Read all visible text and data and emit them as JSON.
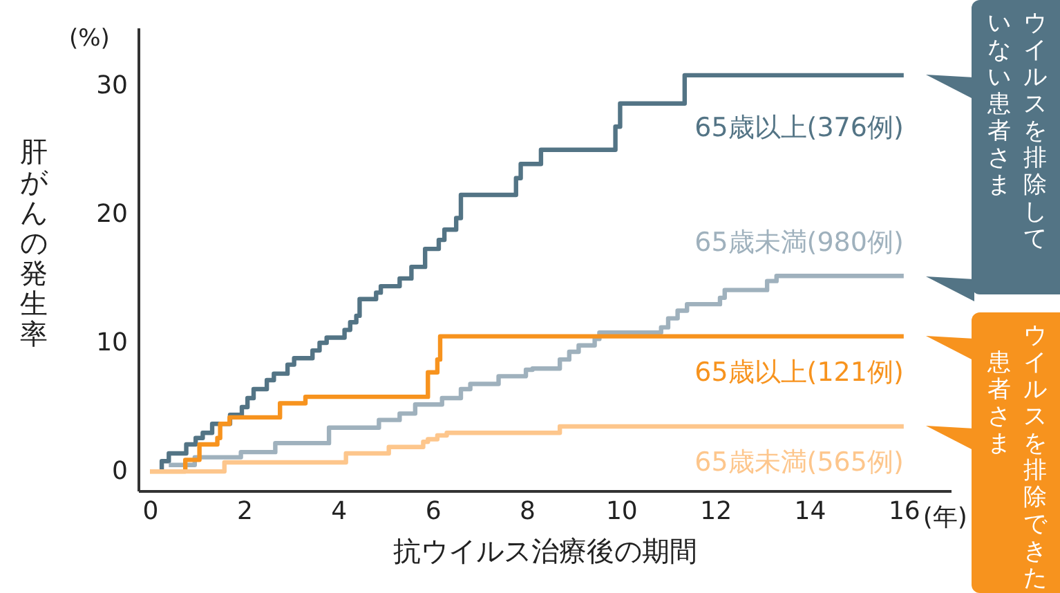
{
  "chart_data": {
    "type": "step",
    "xlabel": "抗ウイルス治療後の期間",
    "ylabel": "肝がんの発生率",
    "annotations": [
      "(%)",
      "(年)",
      "ウイルスを排除して",
      "いない患者さま",
      "ウイルスを排除できた",
      "患者さま"
    ],
    "xlim": [
      -0.25,
      17
    ],
    "xticks": [
      0,
      2,
      4,
      6,
      8,
      10,
      12,
      14,
      16
    ],
    "ylim": [
      -1.5,
      34.5
    ],
    "yticks": [
      0,
      10,
      20,
      30
    ],
    "marker": "none",
    "line_style": "solid",
    "series": [
      {
        "name": "65歳以上(376例)",
        "color": "#537485",
        "x": [
          0.25,
          0.25,
          0.4,
          0.77,
          0.97,
          1.12,
          1.32,
          1.7,
          1.95,
          2.07,
          2.2,
          2.48,
          2.63,
          2.92,
          3.06,
          3.45,
          3.6,
          3.75,
          4.13,
          4.25,
          4.38,
          4.45,
          4.8,
          4.9,
          5.3,
          5.55,
          5.84,
          6.13,
          6.25,
          6.5,
          6.6,
          7.77,
          7.87,
          8.3,
          9.88,
          9.98,
          11.35,
          16
        ],
        "values": [
          0,
          0.8,
          1.4,
          2.1,
          2.6,
          3,
          3.7,
          4.4,
          5,
          5.7,
          6.4,
          7.1,
          7.6,
          8.3,
          8.8,
          9.4,
          10,
          10.4,
          11,
          11.6,
          12.1,
          13.4,
          13.9,
          14.4,
          15,
          15.9,
          17.3,
          18,
          18.8,
          19.7,
          21.5,
          22.8,
          23.9,
          25,
          26.8,
          28.6,
          30.8,
          30.8
        ]
      },
      {
        "name": "65歳未満(980例)",
        "color": "#9fb1bd",
        "x": [
          0.4,
          0.95,
          1.93,
          2.66,
          3.8,
          4.86,
          5.3,
          5.63,
          6.2,
          6.6,
          6.8,
          7.4,
          7.98,
          8.12,
          8.7,
          8.9,
          9.1,
          9.44,
          9.54,
          10.85,
          11,
          11.2,
          11.4,
          12.1,
          12.2,
          13.1,
          13.3,
          16
        ],
        "values": [
          0.5,
          1.1,
          1.5,
          2.2,
          3.4,
          4,
          4.5,
          5.2,
          5.7,
          6.4,
          6.8,
          7.4,
          7.9,
          8,
          8.7,
          9.3,
          9.8,
          10.3,
          10.8,
          11.2,
          11.9,
          12.5,
          13,
          13.5,
          14.1,
          14.8,
          15.2,
          15.2
        ]
      },
      {
        "name": "65歳以上(121例)",
        "color": "#f7931e",
        "x": [
          0,
          0.75,
          1.05,
          1.43,
          1.49,
          1.69,
          2.76,
          3.3,
          5.9,
          6.1,
          6.16,
          16
        ],
        "values": [
          0,
          0.9,
          2.1,
          2.6,
          3.7,
          4.2,
          5.3,
          5.8,
          7.7,
          8.7,
          10.5,
          10.5
        ]
      },
      {
        "name": "65歳未満(565例)",
        "color": "#fdc68c",
        "x": [
          0,
          1.58,
          4.16,
          5.07,
          5.8,
          5.9,
          6.1,
          6.3,
          8.7,
          16
        ],
        "values": [
          0,
          0.7,
          1.4,
          1.9,
          2.3,
          2.5,
          2.8,
          3,
          3.5,
          3.5
        ]
      }
    ]
  }
}
